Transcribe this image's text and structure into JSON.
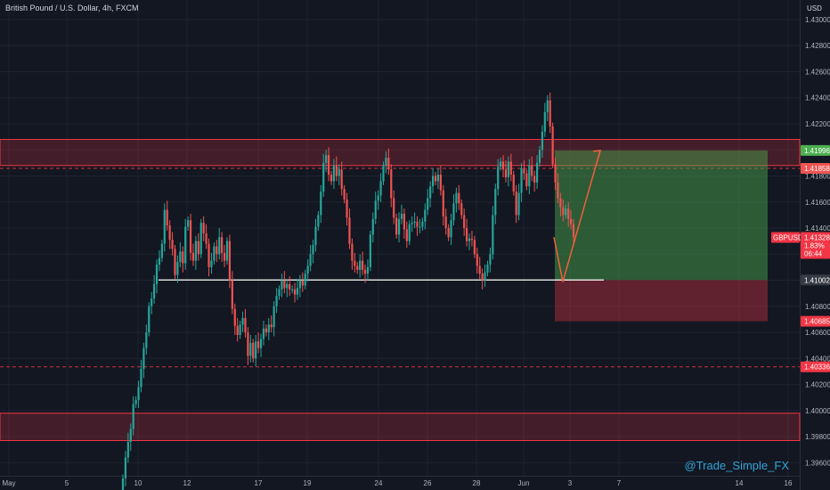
{
  "header": {
    "title": "British Pound / U.S. Dollar, 4h, FXCM"
  },
  "currency": "USD",
  "watermark": "@Trade_Simple_FX",
  "chart_data": {
    "type": "candlestick",
    "symbol": "GBPUSD",
    "interval": "4h",
    "ylim": [
      1.395,
      1.4315
    ],
    "price_ticks": [
      "1.43000",
      "1.42800",
      "1.42600",
      "1.42400",
      "1.42200",
      "1.42000",
      "1.41800",
      "1.41600",
      "1.41400",
      "1.41200",
      "1.41000",
      "1.40800",
      "1.40600",
      "1.40400",
      "1.40200",
      "1.40000",
      "1.39800",
      "1.39600"
    ],
    "time_ticks": [
      "May",
      "5",
      "10",
      "12",
      "17",
      "19",
      "24",
      "26",
      "28",
      "Jun",
      "3",
      "7",
      "14",
      "16"
    ],
    "price_labels": [
      {
        "value": "1.41996",
        "color": "#4caf50"
      },
      {
        "value": "1.41858",
        "color": "#ef5350"
      },
      {
        "value": "1.41002",
        "color": "#363a45"
      },
      {
        "value": "1.40685",
        "color": "#f23645"
      },
      {
        "value": "1.40336",
        "color": "#f23645"
      }
    ],
    "current_price": {
      "symbol": "GBPUSD",
      "value": "1.41328",
      "change": "1.83%",
      "countdown": "06:44",
      "color": "#f23645"
    },
    "zones": [
      {
        "type": "resistance",
        "low": 1.4188,
        "high": 1.4208
      },
      {
        "type": "support",
        "low": 1.3977,
        "high": 1.3998
      }
    ],
    "dashed_lines": [
      1.41858,
      1.40336
    ],
    "support_line": 1.41002,
    "long_position": {
      "entry": 1.41002,
      "target": 1.41996,
      "stop": 1.40685
    },
    "projection": [
      1.41002,
      1.41996
    ],
    "candles_close": [
      1.3948,
      1.3964,
      1.3976,
      1.3986,
      1.4005,
      1.4008,
      1.4018,
      1.4032,
      1.4048,
      1.406,
      1.408,
      1.4086,
      1.4097,
      1.4112,
      1.4117,
      1.4128,
      1.4154,
      1.4142,
      1.4131,
      1.4124,
      1.4104,
      1.4114,
      1.4122,
      1.4113,
      1.4141,
      1.4146,
      1.4121,
      1.4115,
      1.413,
      1.412,
      1.4144,
      1.4136,
      1.4128,
      1.411,
      1.4115,
      1.4126,
      1.412,
      1.4133,
      1.4121,
      1.4115,
      1.413,
      1.41,
      1.4078,
      1.4065,
      1.4058,
      1.4066,
      1.4071,
      1.406,
      1.4042,
      1.4052,
      1.404,
      1.4053,
      1.4048,
      1.4055,
      1.4063,
      1.406,
      1.4066,
      1.4064,
      1.408,
      1.4088,
      1.4093,
      1.41,
      1.4094,
      1.4097,
      1.4093,
      1.4093,
      1.4089,
      1.4094,
      1.41,
      1.4096,
      1.4105,
      1.4111,
      1.412,
      1.4127,
      1.4141,
      1.415,
      1.4168,
      1.419,
      1.4196,
      1.4181,
      1.4176,
      1.4188,
      1.418,
      1.4185,
      1.417,
      1.4162,
      1.4148,
      1.4128,
      1.4115,
      1.4111,
      1.4108,
      1.4115,
      1.4108,
      1.4105,
      1.411,
      1.4135,
      1.4147,
      1.4161,
      1.4165,
      1.4176,
      1.4188,
      1.4194,
      1.4185,
      1.4163,
      1.4148,
      1.4135,
      1.4147,
      1.4151,
      1.4139,
      1.413,
      1.4143,
      1.4144,
      1.4145,
      1.4141,
      1.4141,
      1.4145,
      1.4154,
      1.4163,
      1.4172,
      1.418,
      1.4176,
      1.4181,
      1.4169,
      1.4149,
      1.414,
      1.4133,
      1.4146,
      1.4159,
      1.4167,
      1.4159,
      1.415,
      1.414,
      1.413,
      1.4132,
      1.4131,
      1.412,
      1.4111,
      1.4105,
      1.41,
      1.4106,
      1.4112,
      1.412,
      1.415,
      1.417,
      1.4187,
      1.4191,
      1.4185,
      1.4179,
      1.4191,
      1.4181,
      1.4168,
      1.415,
      1.4167,
      1.4186,
      1.4182,
      1.4172,
      1.4188,
      1.418,
      1.4175,
      1.419,
      1.42,
      1.4214,
      1.4229,
      1.4238,
      1.4218,
      1.4189,
      1.4175,
      1.4163,
      1.4156,
      1.415,
      1.4155,
      1.4147,
      1.4143,
      1.4133
    ]
  }
}
